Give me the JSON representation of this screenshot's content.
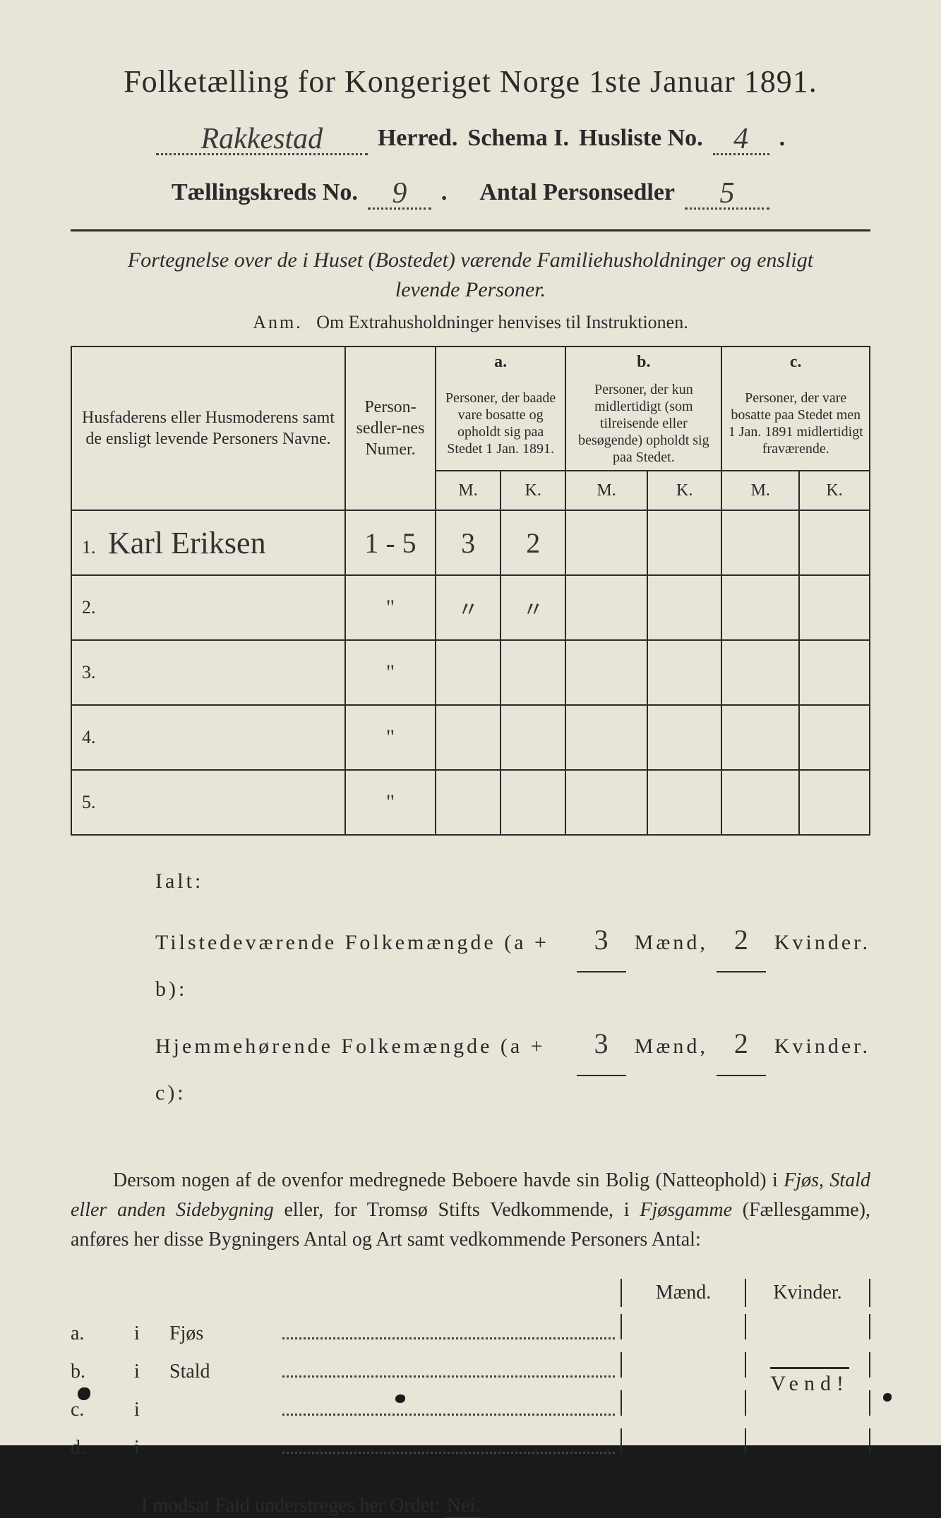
{
  "title": "Folketælling for Kongeriget Norge 1ste Januar 1891.",
  "header": {
    "herred_value": "Rakkestad",
    "herred_label": "Herred.",
    "schema_label": "Schema I.",
    "husliste_label": "Husliste No.",
    "husliste_value": "4",
    "kreds_label": "Tællingskreds No.",
    "kreds_value": "9",
    "antal_label": "Antal Personsedler",
    "antal_value": "5"
  },
  "subtitle": "Fortegnelse over de i Huset (Bostedet) værende Familiehusholdninger og ensligt levende Personer.",
  "anm_label": "Anm.",
  "anm_text": "Om Extrahusholdninger henvises til Instruktionen.",
  "table": {
    "col_names": "Husfaderens eller Husmoderens samt de ensligt levende Personers Navne.",
    "col_num": "Person-sedler-nes Numer.",
    "col_a_head": "a.",
    "col_a": "Personer, der baade vare bosatte og opholdt sig paa Stedet 1 Jan. 1891.",
    "col_b_head": "b.",
    "col_b": "Personer, der kun midlertidigt (som tilreisende eller besøgende) opholdt sig paa Stedet.",
    "col_c_head": "c.",
    "col_c": "Personer, der vare bosatte paa Stedet men 1 Jan. 1891 midlertidigt fraværende.",
    "m": "M.",
    "k": "K.",
    "rows": [
      {
        "n": "1.",
        "name": "Karl Eriksen",
        "num": "1 - 5",
        "am": "3",
        "ak": "2",
        "bm": "",
        "bk": "",
        "cm": "",
        "ck": ""
      },
      {
        "n": "2.",
        "name": "",
        "num": "\"",
        "am": "〃",
        "ak": "〃",
        "bm": "",
        "bk": "",
        "cm": "",
        "ck": ""
      },
      {
        "n": "3.",
        "name": "",
        "num": "\"",
        "am": "",
        "ak": "",
        "bm": "",
        "bk": "",
        "cm": "",
        "ck": ""
      },
      {
        "n": "4.",
        "name": "",
        "num": "\"",
        "am": "",
        "ak": "",
        "bm": "",
        "bk": "",
        "cm": "",
        "ck": ""
      },
      {
        "n": "5.",
        "name": "",
        "num": "\"",
        "am": "",
        "ak": "",
        "bm": "",
        "bk": "",
        "cm": "",
        "ck": ""
      }
    ]
  },
  "summary": {
    "ialt": "Ialt:",
    "line1_label": "Tilstedeværende Folkemængde (a + b):",
    "line2_label": "Hjemmehørende Folkemængde (a + c):",
    "maend": "Mænd,",
    "kvinder": "Kvinder.",
    "l1_m": "3",
    "l1_k": "2",
    "l2_m": "3",
    "l2_k": "2"
  },
  "para": {
    "text1": "Dersom nogen af de ovenfor medregnede Beboere havde sin Bolig (Natteophold) i ",
    "ital1": "Fjøs, Stald eller anden Sidebygning",
    "text2": " eller, for Tromsø Stifts Vedkommende, i ",
    "ital2": "Fjøsgamme",
    "text3": " (Fællesgamme), anføres her disse Bygningers Antal og Art samt vedkommende Personers Antal:"
  },
  "fjos": {
    "maend": "Mænd.",
    "kvinder": "Kvinder.",
    "rows": [
      {
        "label": "a.",
        "i": "i",
        "name": "Fjøs"
      },
      {
        "label": "b.",
        "i": "i",
        "name": "Stald"
      },
      {
        "label": "c.",
        "i": "i",
        "name": ""
      },
      {
        "label": "d.",
        "i": "i",
        "name": ""
      }
    ]
  },
  "nei_line": "I modsat Fald understreges her Ordet:",
  "nei": "Nei.",
  "vend": "Vend!"
}
